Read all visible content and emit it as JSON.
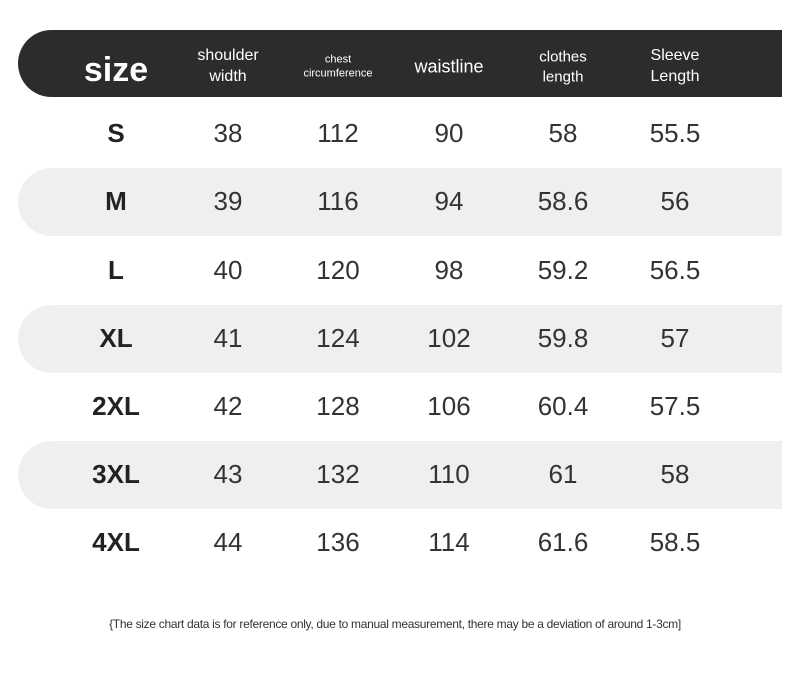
{
  "table": {
    "header": [
      "size",
      "shoulder width",
      "chest circumference",
      "waistline",
      "clothes length",
      "Sleeve Length"
    ],
    "rows": [
      [
        "S",
        "38",
        "112",
        "90",
        "58",
        "55.5"
      ],
      [
        "M",
        "39",
        "116",
        "94",
        "58.6",
        "56"
      ],
      [
        "L",
        "40",
        "120",
        "98",
        "59.2",
        "56.5"
      ],
      [
        "XL",
        "41",
        "124",
        "102",
        "59.8",
        "57"
      ],
      [
        "2XL",
        "42",
        "128",
        "106",
        "60.4",
        "57.5"
      ],
      [
        "3XL",
        "43",
        "132",
        "110",
        "61",
        "58"
      ],
      [
        "4XL",
        "44",
        "136",
        "114",
        "61.6",
        "58.5"
      ]
    ]
  },
  "footnote": "{The size chart data is for reference only, due to manual measurement, there may be a deviation of around 1-3cm]"
}
